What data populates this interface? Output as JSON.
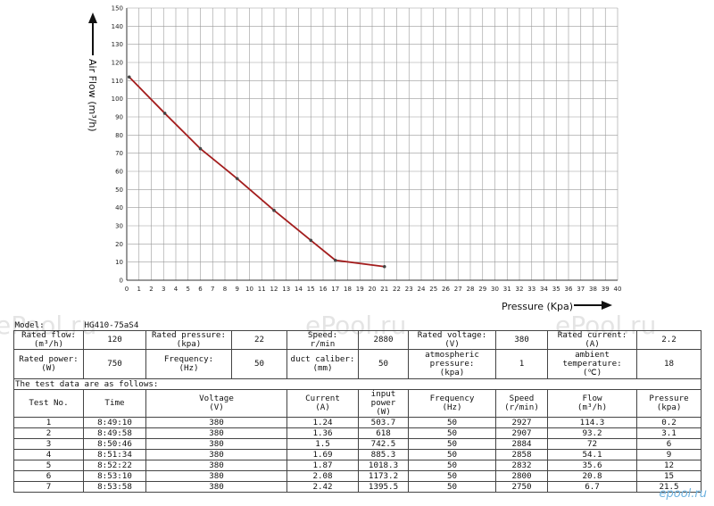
{
  "chart_data": {
    "type": "line",
    "xlabel": "Pressure (Kpa)",
    "ylabel": "Air Flow (m³/h)",
    "xlim": [
      0,
      40
    ],
    "ylim": [
      0,
      150
    ],
    "x_ticks": [
      "0",
      "1",
      "2",
      "3",
      "4",
      "5",
      "6",
      "7",
      "8",
      "9",
      "10",
      "11",
      "12",
      "13",
      "14",
      "15",
      "16",
      "17",
      "18",
      "19",
      "20",
      "21",
      "22",
      "23",
      "24",
      "25",
      "26",
      "27",
      "28",
      "29",
      "30",
      "31",
      "32",
      "33",
      "34",
      "35",
      "36",
      "37",
      "38",
      "39",
      "40"
    ],
    "y_ticks": [
      "0",
      "10",
      "20",
      "30",
      "40",
      "50",
      "60",
      "70",
      "80",
      "90",
      "100",
      "110",
      "120",
      "130",
      "140",
      "150"
    ],
    "grid": true,
    "color": "#a31d1d",
    "series": [
      {
        "x": [
          0.2,
          3.1,
          6,
          9,
          12,
          15,
          17,
          21
        ],
        "y": [
          112,
          92,
          72.5,
          56,
          38.5,
          22,
          11,
          7.5
        ]
      }
    ]
  },
  "watermark": "ePool.ru",
  "corner_logo": "epool.ru",
  "spec": {
    "model_label": "Model:",
    "model_value": "HG410-75aS4",
    "rated_flow_label": "Rated flow:\n(m³/h)",
    "rated_flow_value": "120",
    "rated_pressure_label": "Rated pressure:\n(kpa)",
    "rated_pressure_value": "22",
    "speed_label": "Speed:\nr/min",
    "speed_value": "2880",
    "rated_voltage_label": "Rated voltage:\n(V)",
    "rated_voltage_value": "380",
    "rated_current_label": "Rated current:\n(A)",
    "rated_current_value": "2.2",
    "rated_power_label": "Rated power:\n(W)",
    "rated_power_value": "750",
    "frequency_label": "Frequency:\n(Hz)",
    "frequency_value": "50",
    "duct_label": "duct caliber:\n(mm)",
    "duct_value": "50",
    "atm_label": "atmospheric\npressure:\n(kpa)",
    "atm_value": "1",
    "ambient_label": "ambient\ntemperature:\n(℃)",
    "ambient_value": "18",
    "test_intro": "The test data are as follows:"
  },
  "test_headers": [
    "Test No.",
    "Time",
    "Voltage\n(V)",
    "Current\n(A)",
    "input power\n(W)",
    "Frequency\n(Hz)",
    "Speed\n(r/min)",
    "Flow\n(m³/h)",
    "Pressure\n(kpa)"
  ],
  "test_rows": [
    [
      "1",
      "8:49:10",
      "380",
      "1.24",
      "503.7",
      "50",
      "2927",
      "114.3",
      "0.2"
    ],
    [
      "2",
      "8:49:58",
      "380",
      "1.36",
      "618",
      "50",
      "2907",
      "93.2",
      "3.1"
    ],
    [
      "3",
      "8:50:46",
      "380",
      "1.5",
      "742.5",
      "50",
      "2884",
      "72",
      "6"
    ],
    [
      "4",
      "8:51:34",
      "380",
      "1.69",
      "885.3",
      "50",
      "2858",
      "54.1",
      "9"
    ],
    [
      "5",
      "8:52:22",
      "380",
      "1.87",
      "1018.3",
      "50",
      "2832",
      "35.6",
      "12"
    ],
    [
      "6",
      "8:53:10",
      "380",
      "2.08",
      "1173.2",
      "50",
      "2800",
      "20.8",
      "15"
    ],
    [
      "7",
      "8:53:58",
      "380",
      "2.42",
      "1395.5",
      "50",
      "2750",
      "6.7",
      "21.5"
    ]
  ]
}
